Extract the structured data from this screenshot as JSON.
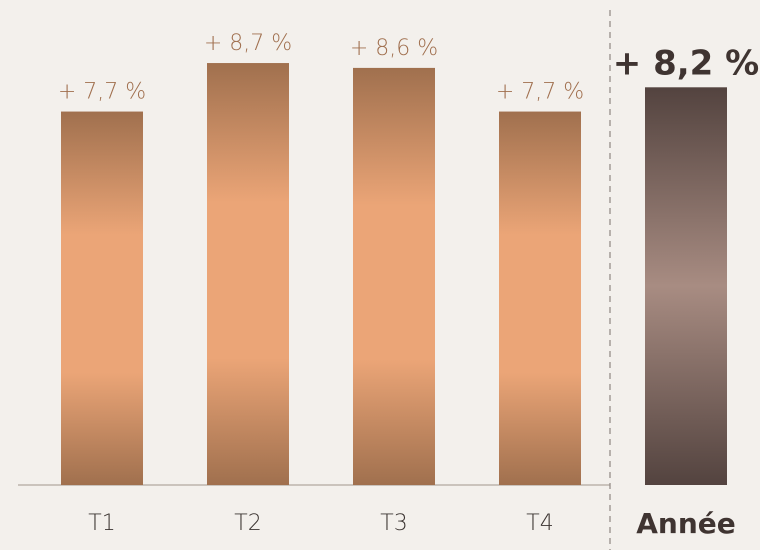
{
  "chart_data": {
    "type": "bar",
    "categories": [
      "T1",
      "T2",
      "T3",
      "T4"
    ],
    "values": [
      7.7,
      8.7,
      8.6,
      7.7
    ],
    "data_labels": [
      "+ 7,7 %",
      "+ 8,7 %",
      "+ 8,6 %",
      "+ 7,7 %"
    ],
    "total": {
      "category": "Année",
      "value": 8.2,
      "data_label": "+ 8,2 %"
    },
    "ylim": [
      0,
      10
    ],
    "grid": false,
    "colors": {
      "bar_mid": "#eba577",
      "bar_edge": "#a0704e",
      "total_mid": "#a88c82",
      "total_edge": "#53433f",
      "label": "#a06f4e",
      "category_label": "#3a3330",
      "total_label": "#3f3431",
      "axis": "#bdb4ac",
      "separator": "#8f8782"
    }
  }
}
